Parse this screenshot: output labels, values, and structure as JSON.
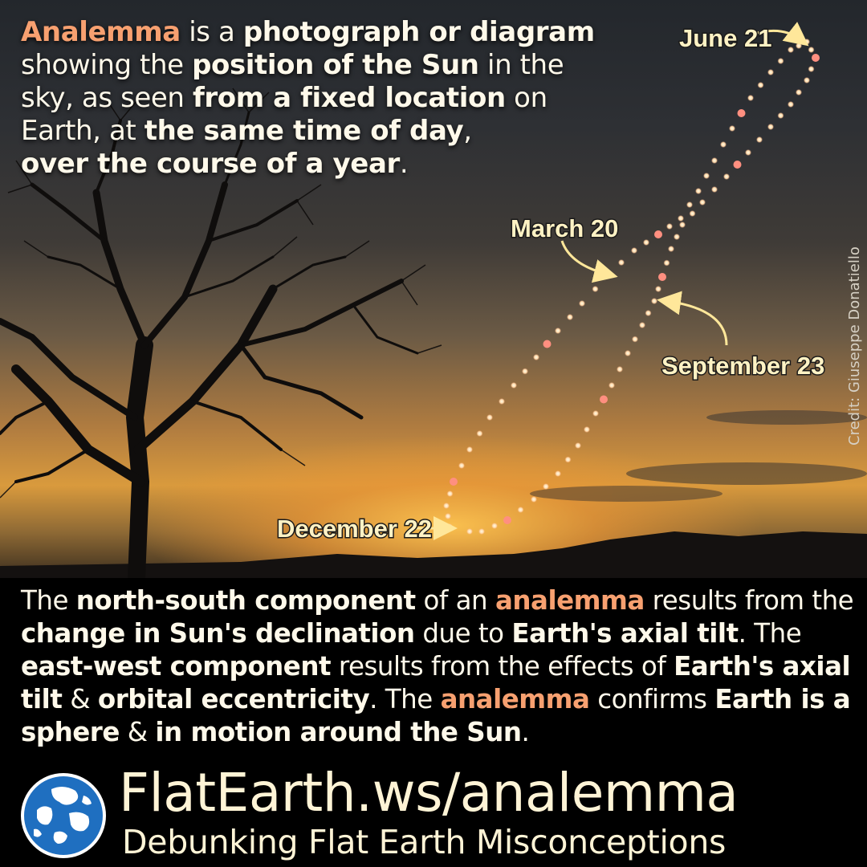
{
  "intro": {
    "t1": "Analemma",
    "t2": " is a ",
    "t3": "photograph or diagram",
    "t4": " showing the ",
    "t5": "position of the Sun",
    "t6": " in the sky, as seen ",
    "t7": "from a fixed location",
    "t8": " on Earth, at ",
    "t9": "the same time of day",
    "t10": ", ",
    "t11": "over the course of a year",
    "t12": "."
  },
  "labels": {
    "june": "June 21",
    "march": "March 20",
    "september": "September 23",
    "december": "December 22"
  },
  "credit": "Credit: Giuseppe Donatiello",
  "body": {
    "b1": "The ",
    "b2": "north-south component",
    "b3": " of an ",
    "b4": "analemma",
    "b5": " results from the ",
    "b6": "change in Sun's declination",
    "b7": " due to ",
    "b8": "Earth's axial tilt",
    "b9": ". The ",
    "b10": "east-west component",
    "b11": " results from the effects of ",
    "b12": "Earth's axial tilt",
    "b13": " & ",
    "b14": "orbital eccentricity",
    "b15": ". The ",
    "b16": "analemma",
    "b17": " confirms ",
    "b18": "Earth is a sphere",
    "b19": " & ",
    "b20": "in motion around the Sun",
    "b21": "."
  },
  "footer": {
    "site": "FlatEarth.ws/analemma",
    "tagline": "Debunking Flat Earth Misconceptions"
  },
  "colors": {
    "accent": "#f7a070",
    "text": "#fff9ea",
    "label": "#fff2c4",
    "globe_blue": "#1f6fc0"
  }
}
